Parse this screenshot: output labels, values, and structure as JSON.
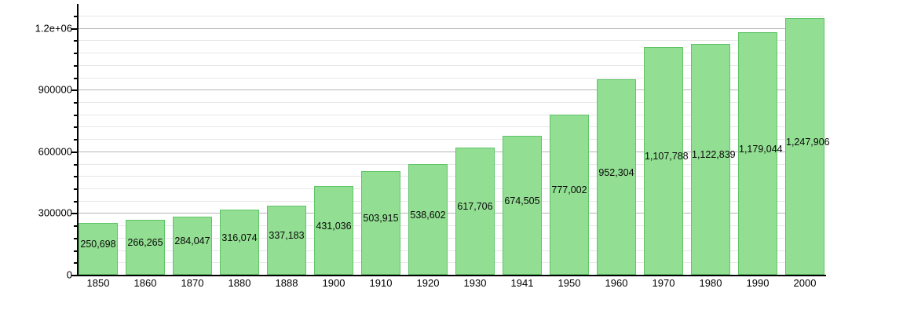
{
  "chart_data": {
    "type": "bar",
    "title": "",
    "xlabel": "",
    "ylabel": "",
    "legend": "none",
    "grid": true,
    "categories": [
      "1850",
      "1860",
      "1870",
      "1880",
      "1888",
      "1900",
      "1910",
      "1920",
      "1930",
      "1941",
      "1950",
      "1960",
      "1970",
      "1980",
      "1990",
      "2000"
    ],
    "values": [
      250698,
      266265,
      284047,
      316074,
      337183,
      431036,
      503915,
      538602,
      617706,
      674505,
      777002,
      952304,
      1107788,
      1122839,
      1179044,
      1247906
    ],
    "value_labels": [
      "250,698",
      "266,265",
      "284,047",
      "316,074",
      "337,183",
      "431,036",
      "503,915",
      "538,602",
      "617,706",
      "674,505",
      "777,002",
      "952,304",
      "1,107,788",
      "1,122,839",
      "1,179,044",
      "1,247,906"
    ],
    "y_axis": {
      "ticks": [
        {
          "value": 0,
          "label": "0"
        },
        {
          "value": 300000,
          "label": "300000"
        },
        {
          "value": 600000,
          "label": "600000"
        },
        {
          "value": 900000,
          "label": "900000"
        },
        {
          "value": 1200000,
          "label": "1.2e+06"
        }
      ],
      "major_step": 300000,
      "minor_step": 60000,
      "grid_max": 1260000,
      "ylim": [
        0,
        1270000
      ]
    },
    "colors": {
      "bar_fill": "#92de92",
      "bar_border": "#60c468",
      "axis": "#000000",
      "major_grid": "#b6b6b6",
      "minor_grid": "#e7e7e7",
      "bar_label_text": "#0a0a0a",
      "background": "#ffffff"
    }
  }
}
